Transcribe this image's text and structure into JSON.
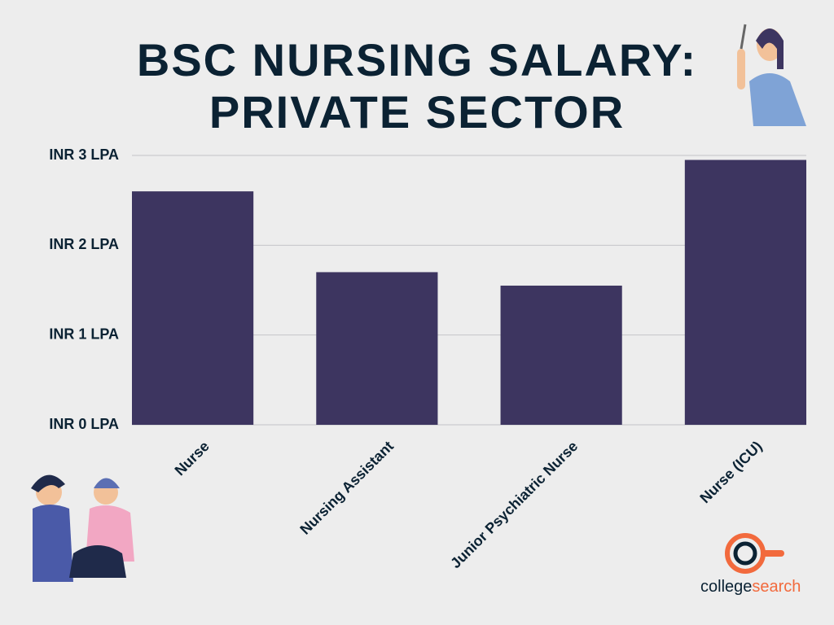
{
  "chart_data": {
    "type": "bar",
    "title": "BSC NURSING SALARY: PRIVATE SECTOR",
    "categories": [
      "Nurse",
      "Nursing Assistant",
      "Junior Psychiatric Nurse",
      "Nurse (ICU)"
    ],
    "values": [
      2.6,
      1.7,
      1.55,
      2.95
    ],
    "color": "#3d3560",
    "ylim": [
      0,
      3
    ],
    "yticks": [
      {
        "value": 0,
        "label": "INR 0 LPA"
      },
      {
        "value": 1,
        "label": "INR 1 LPA"
      },
      {
        "value": 2,
        "label": "INR 2 LPA"
      },
      {
        "value": 3,
        "label": "INR 3 LPA"
      }
    ],
    "grid": true
  },
  "brand": [
    "college",
    "search"
  ]
}
